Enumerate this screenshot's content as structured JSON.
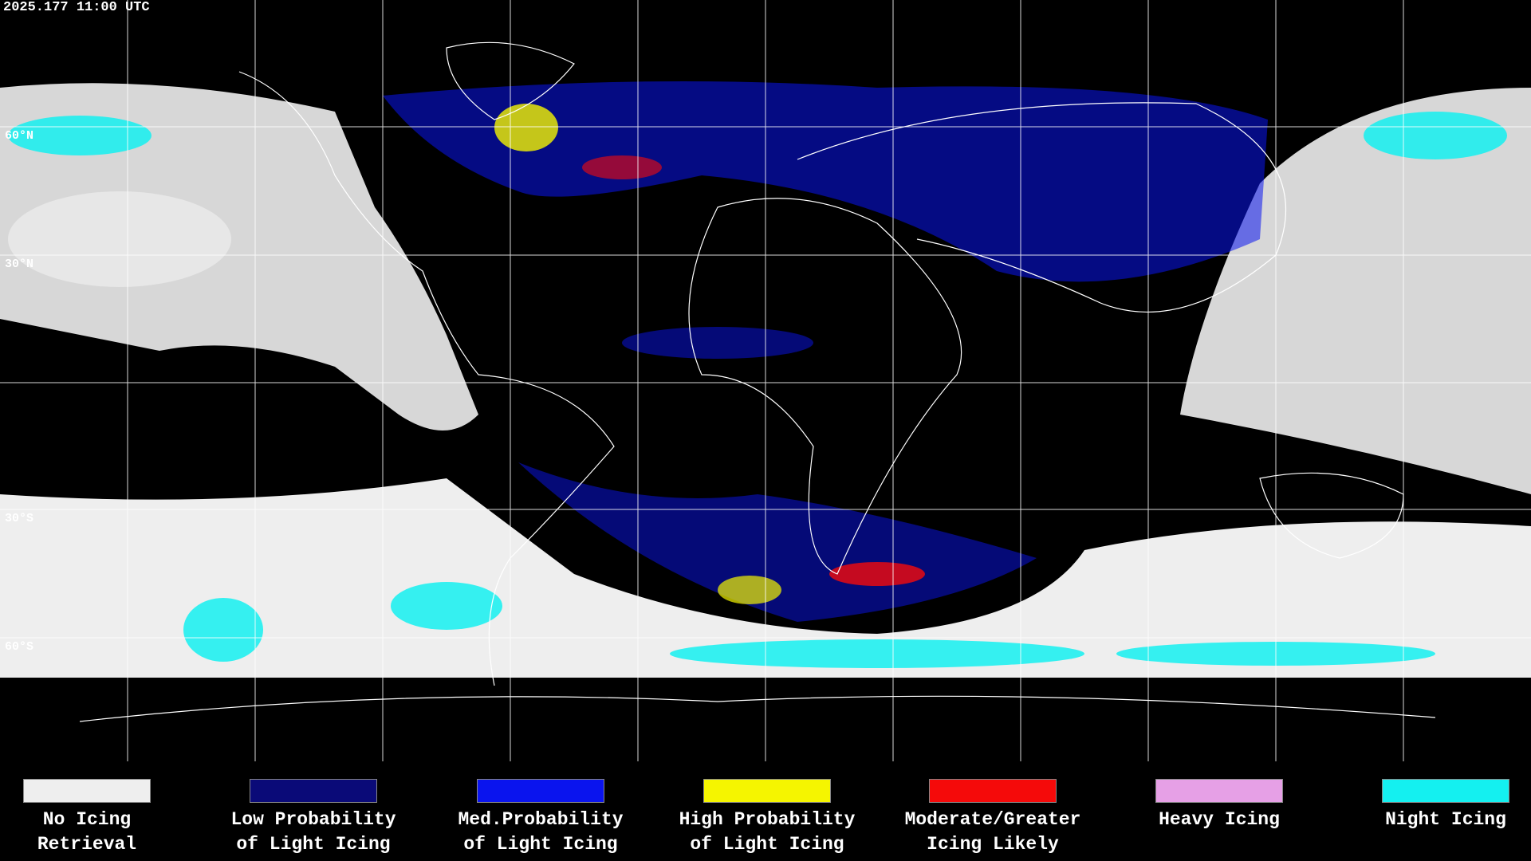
{
  "timestamp": "2025.177 11:00 UTC",
  "latitude_labels": [
    "60°N",
    "30°N",
    "30°S",
    "60°S"
  ],
  "legend": [
    {
      "lines": [
        "No Icing",
        "Retrieval"
      ],
      "color": "#eeeeee"
    },
    {
      "lines": [
        "Low Probability",
        "of Light Icing"
      ],
      "color": "#0a0a78"
    },
    {
      "lines": [
        "Med.Probability",
        "of Light Icing"
      ],
      "color": "#0a14ee"
    },
    {
      "lines": [
        "High Probability",
        "of Light Icing"
      ],
      "color": "#f5f500"
    },
    {
      "lines": [
        "Moderate/Greater",
        "Icing Likely"
      ],
      "color": "#f50a0a"
    },
    {
      "lines": [
        "Heavy Icing"
      ],
      "color": "#e6a0e6"
    },
    {
      "lines": [
        "Night Icing"
      ],
      "color": "#14f0f0"
    }
  ]
}
